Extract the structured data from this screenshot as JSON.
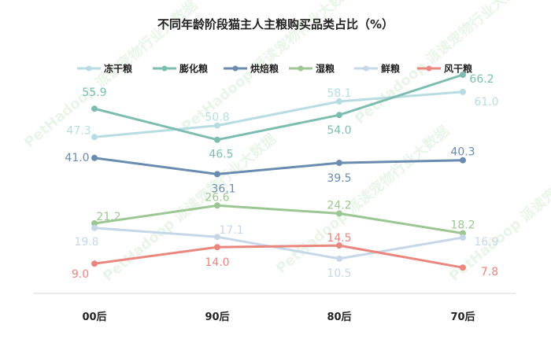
{
  "chart_data": {
    "type": "line",
    "title": "不同年龄阶段猫主人主粮购买品类占比（%）",
    "categories": [
      "00后",
      "90后",
      "80后",
      "70后"
    ],
    "ylim": [
      0,
      75
    ],
    "grid": false,
    "legend_position": "top",
    "series": [
      {
        "name": "冻干粮",
        "color": "#b7dde2",
        "values": [
          47.3,
          50.8,
          58.1,
          61.0
        ]
      },
      {
        "name": "膨化粮",
        "color": "#7cbdb0",
        "values": [
          55.9,
          46.5,
          54.0,
          66.2
        ]
      },
      {
        "name": "烘焙粮",
        "color": "#6a8cb0",
        "values": [
          41.0,
          36.1,
          39.5,
          40.3
        ]
      },
      {
        "name": "湿粮",
        "color": "#9cc692",
        "values": [
          21.2,
          26.6,
          24.2,
          18.2
        ]
      },
      {
        "name": "鲜粮",
        "color": "#c6d8e8",
        "values": [
          19.8,
          17.1,
          10.5,
          16.9
        ]
      },
      {
        "name": "风干粮",
        "color": "#e9877f",
        "values": [
          9.0,
          14.0,
          14.5,
          7.8
        ]
      }
    ]
  },
  "watermark": "PetHadoop 派读宠物行业大数据"
}
